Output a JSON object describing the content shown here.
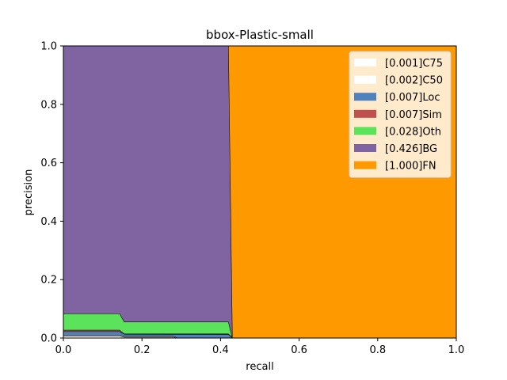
{
  "chart_data": {
    "type": "area",
    "title": "bbox-Plastic-small",
    "xlabel": "recall",
    "ylabel": "precision",
    "xlim": [
      0,
      1
    ],
    "ylim": [
      0,
      1
    ],
    "xticks": [
      "0.0",
      "0.2",
      "0.4",
      "0.6",
      "0.8",
      "1.0"
    ],
    "yticks": [
      "0.0",
      "0.2",
      "0.4",
      "0.6",
      "0.8",
      "1.0"
    ],
    "legend_position": "top-right",
    "grid": false,
    "series": [
      {
        "name": "[1.000]FN",
        "color": "#ff9900",
        "points": [
          [
            0,
            1.0
          ],
          [
            1.0,
            1.0
          ]
        ]
      },
      {
        "name": "[0.426]BG",
        "color": "#8064a2",
        "points": [
          [
            0,
            1.0
          ],
          [
            0.42,
            1.0
          ],
          [
            0.43,
            0.0
          ]
        ]
      },
      {
        "name": "[0.028]Oth",
        "color": "#5ce35c",
        "points": [
          [
            0,
            0.083
          ],
          [
            0.143,
            0.083
          ],
          [
            0.155,
            0.055
          ],
          [
            0.42,
            0.055
          ],
          [
            0.428,
            0.01
          ],
          [
            0.43,
            0.0
          ]
        ]
      },
      {
        "name": "[0.007]Sim",
        "color": "#c0504d",
        "points": [
          [
            0,
            0.027
          ],
          [
            0.143,
            0.027
          ],
          [
            0.155,
            0.014
          ],
          [
            0.42,
            0.014
          ],
          [
            0.428,
            0.004
          ],
          [
            0.43,
            0.0
          ]
        ]
      },
      {
        "name": "[0.007]Loc",
        "color": "#4f81bd",
        "points": [
          [
            0,
            0.022
          ],
          [
            0.143,
            0.022
          ],
          [
            0.155,
            0.013
          ],
          [
            0.42,
            0.012
          ],
          [
            0.428,
            0.003
          ],
          [
            0.43,
            0.0
          ]
        ]
      },
      {
        "name": "[0.002]C50",
        "color": "#ffffff",
        "points": [
          [
            0,
            0.01
          ],
          [
            0.143,
            0.01
          ],
          [
            0.155,
            0.006
          ],
          [
            0.28,
            0.006
          ],
          [
            0.29,
            0.0
          ],
          [
            0.43,
            0.0
          ]
        ]
      },
      {
        "name": "[0.001]C75",
        "color": "#ffffff",
        "points": [
          [
            0,
            0.006
          ],
          [
            0.143,
            0.006
          ],
          [
            0.155,
            0.003
          ],
          [
            0.28,
            0.003
          ],
          [
            0.29,
            0.0
          ],
          [
            0.43,
            0.0
          ]
        ]
      }
    ]
  }
}
